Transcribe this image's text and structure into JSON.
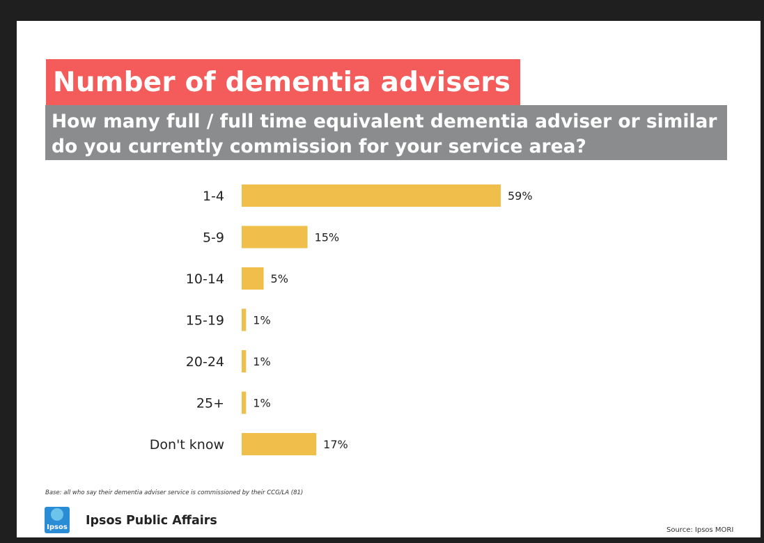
{
  "slide": {
    "title": "Number of dementia advisers",
    "subtitle": "How many full / full time equivalent dementia adviser or similar do you currently commission for your service area?",
    "base_note": "Base: all who say their dementia adviser service is commissioned by their CCG/LA (81)",
    "brand": "Ipsos Public Affairs",
    "logo_text": "Ipsos",
    "source": "Source:  Ipsos MORI"
  },
  "colors": {
    "bar": "#f0be4b",
    "title_bg": "#f45b5b",
    "subtitle_bg": "#8a8c8e"
  },
  "chart_data": {
    "type": "bar",
    "orientation": "horizontal",
    "categories": [
      "1-4",
      "5-9",
      "10-14",
      "15-19",
      "20-24",
      "25+",
      "Don't know"
    ],
    "values": [
      59,
      15,
      5,
      1,
      1,
      1,
      17
    ],
    "value_labels": [
      "59%",
      "15%",
      "5%",
      "1%",
      "1%",
      "1%",
      "17%"
    ],
    "xlim": [
      0,
      59
    ],
    "grid": false,
    "legend": "none"
  }
}
